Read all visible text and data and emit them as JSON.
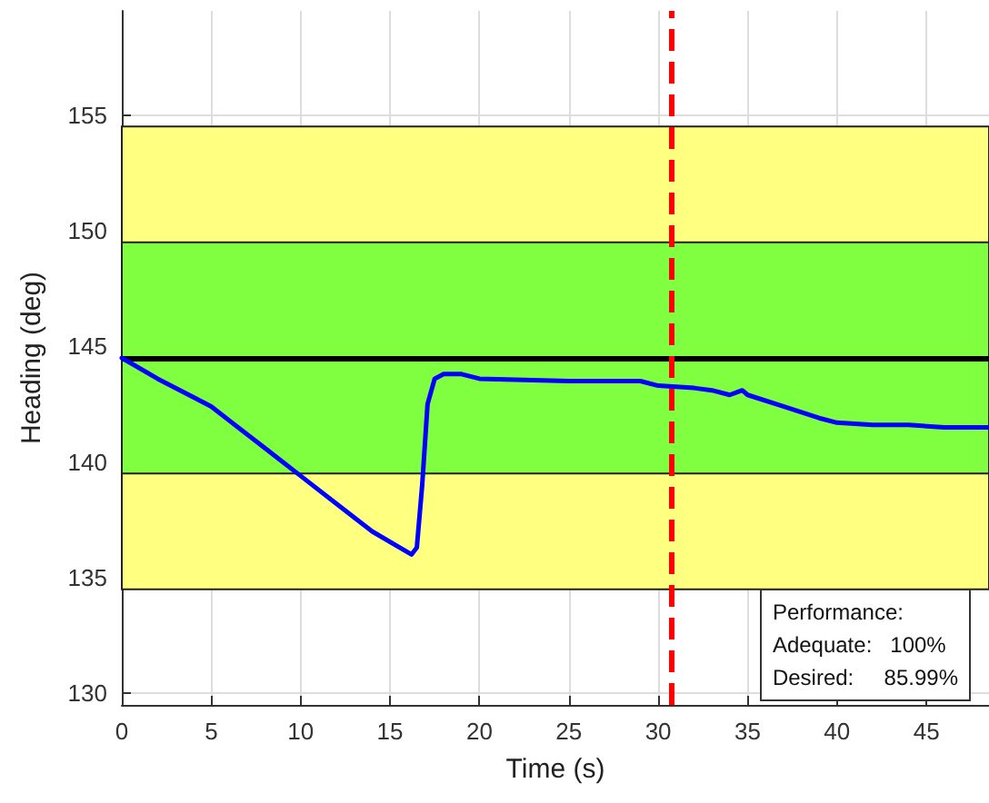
{
  "chart_data": {
    "type": "line",
    "xlabel": "Time (s)",
    "ylabel": "Heading (deg)",
    "xlim": [
      0,
      48.5
    ],
    "ylim": [
      129.5,
      159.5
    ],
    "xticks": [
      0,
      5,
      10,
      15,
      20,
      25,
      30,
      35,
      40,
      45
    ],
    "yticks": [
      130,
      135,
      140,
      145,
      150,
      155
    ],
    "grid": true,
    "marker": "none",
    "line_style": "solid",
    "series": [
      {
        "color": "#0000ff",
        "x": [
          0,
          2,
          4,
          5,
          8,
          10,
          12,
          14,
          16.2,
          16.5,
          16.8,
          17.1,
          17.5,
          18,
          19,
          20,
          25,
          29,
          30,
          32,
          33,
          34,
          34.7,
          35,
          37,
          39,
          40,
          42,
          44,
          46,
          48.5
        ],
        "values": [
          144.5,
          143.6,
          142.8,
          142.4,
          140.6,
          139.4,
          138.2,
          137.0,
          136.0,
          136.3,
          139.0,
          142.5,
          143.6,
          143.8,
          143.8,
          143.6,
          143.5,
          143.5,
          143.3,
          143.2,
          143.1,
          142.9,
          143.1,
          142.9,
          142.4,
          141.9,
          141.7,
          141.6,
          141.6,
          141.5,
          141.5
        ]
      }
    ],
    "bands": [
      {
        "axis": "y",
        "from": 134.5,
        "to": 154.5,
        "color": "#ffff80"
      },
      {
        "axis": "y",
        "from": 139.5,
        "to": 149.5,
        "color": "#80ff40"
      }
    ],
    "ref_lines": [
      {
        "axis": "y",
        "value": 144.5,
        "color": "#000000",
        "line_style": "solid"
      },
      {
        "axis": "x",
        "value": 30.7,
        "color": "#ff0000",
        "line_style": "dashed"
      }
    ],
    "annotations": [
      "Performance:",
      "Adequate:   100%",
      "Desired:     85.99%"
    ]
  }
}
